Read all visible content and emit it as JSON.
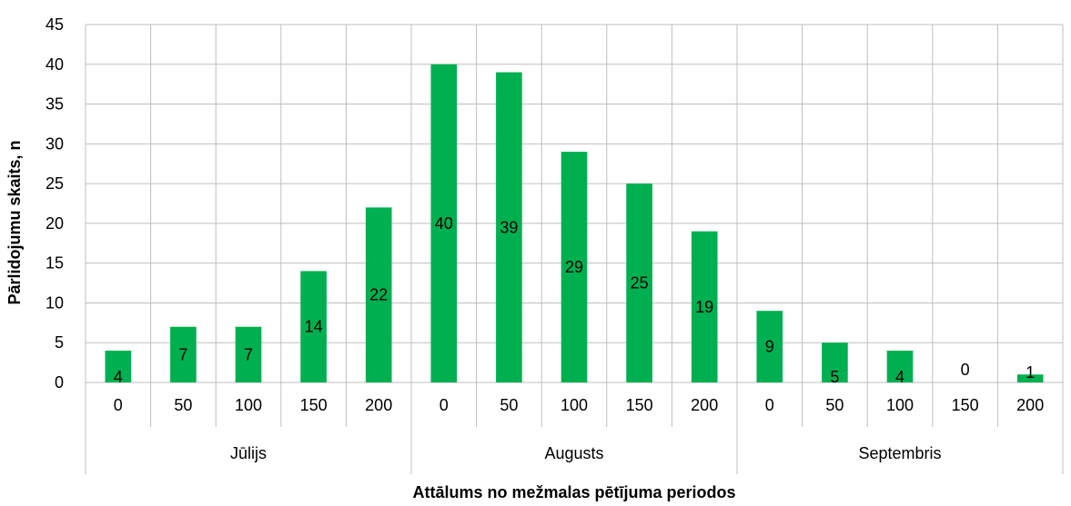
{
  "chart_data": {
    "type": "bar",
    "ylabel": "Pārlidojumu skaits, n",
    "xlabel": "Attālums no mežmalas pētījuma periodos",
    "ylim": [
      0,
      45
    ],
    "yticks": [
      0,
      5,
      10,
      15,
      20,
      25,
      30,
      35,
      40,
      45
    ],
    "grid": true,
    "bar_color": "#00B050",
    "groups": [
      {
        "name": "Jūlijs",
        "categories": [
          "0",
          "50",
          "100",
          "150",
          "200"
        ],
        "values": [
          4,
          7,
          7,
          14,
          22
        ]
      },
      {
        "name": "Augusts",
        "categories": [
          "0",
          "50",
          "100",
          "150",
          "200"
        ],
        "values": [
          40,
          39,
          29,
          25,
          19
        ]
      },
      {
        "name": "Septembris",
        "categories": [
          "0",
          "50",
          "100",
          "150",
          "200"
        ],
        "values": [
          9,
          5,
          4,
          0,
          1
        ]
      }
    ]
  }
}
